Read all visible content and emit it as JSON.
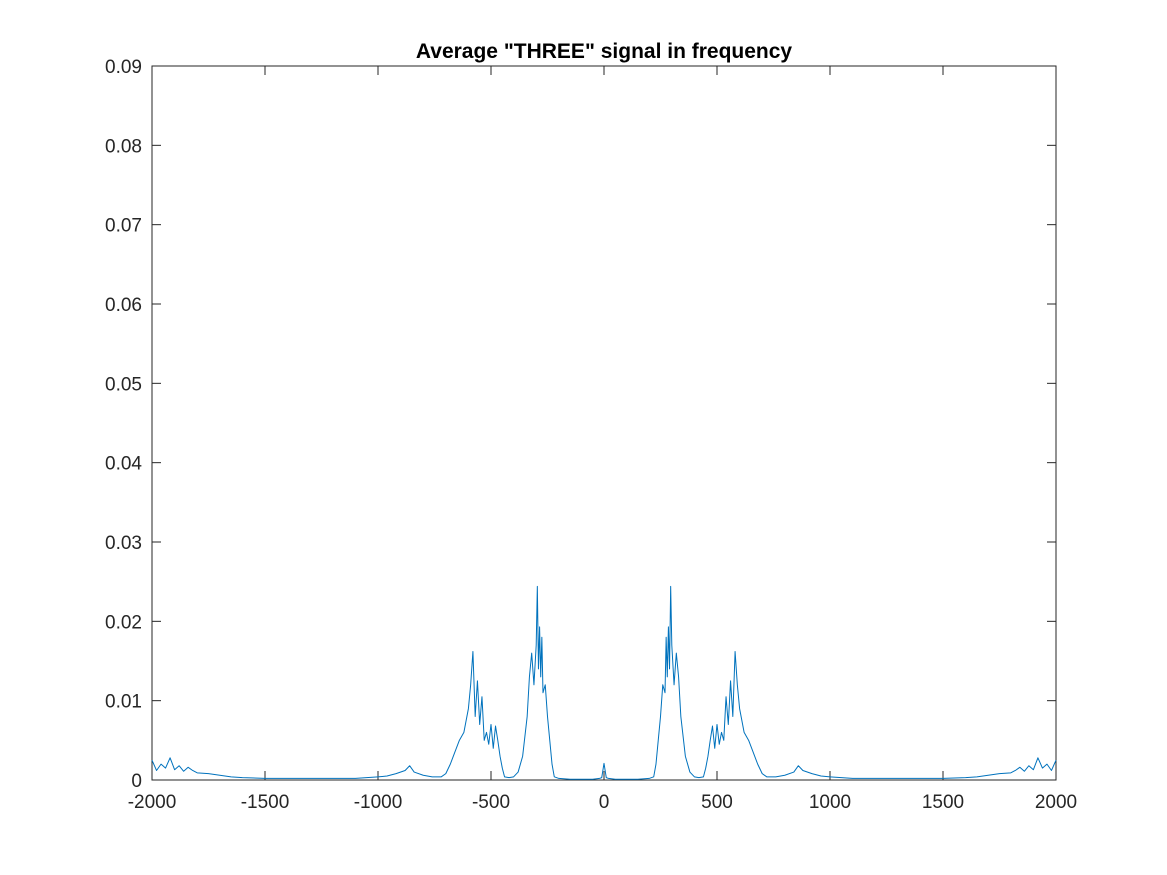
{
  "chart_data": {
    "type": "line",
    "title": "Average \"THREE\" signal in frequency",
    "xlabel": "",
    "ylabel": "",
    "xlim": [
      -2000,
      2000
    ],
    "ylim": [
      0,
      0.09
    ],
    "xticks": [
      -2000,
      -1500,
      -1000,
      -500,
      0,
      500,
      1000,
      1500,
      2000
    ],
    "xtick_labels": [
      "-2000",
      "-1500",
      "-1000",
      "-500",
      "0",
      "500",
      "1000",
      "1500",
      "2000"
    ],
    "yticks": [
      0,
      0.01,
      0.02,
      0.03,
      0.04,
      0.05,
      0.06,
      0.07,
      0.08,
      0.09
    ],
    "ytick_labels": [
      "0",
      "0.01",
      "0.02",
      "0.03",
      "0.04",
      "0.05",
      "0.06",
      "0.07",
      "0.08",
      "0.09"
    ],
    "grid": false,
    "line_color": "#0072BD",
    "series": [
      {
        "x": [
          -2000,
          -1980,
          -1960,
          -1940,
          -1920,
          -1900,
          -1880,
          -1860,
          -1840,
          -1820,
          -1800,
          -1750,
          -1700,
          -1650,
          -1600,
          -1500,
          -1400,
          -1300,
          -1200,
          -1100,
          -1000,
          -960,
          -920,
          -880,
          -860,
          -840,
          -800,
          -760,
          -720,
          -700,
          -680,
          -660,
          -640,
          -620,
          -600,
          -590,
          -580,
          -570,
          -560,
          -550,
          -540,
          -530,
          -520,
          -510,
          -500,
          -490,
          -480,
          -470,
          -460,
          -450,
          -440,
          -420,
          -400,
          -380,
          -360,
          -340,
          -330,
          -320,
          -310,
          -300,
          -295,
          -290,
          -285,
          -280,
          -275,
          -270,
          -260,
          -250,
          -240,
          -230,
          -220,
          -200,
          -150,
          -100,
          -50,
          -20,
          -10,
          0,
          10,
          20,
          50,
          100,
          150,
          200,
          220,
          230,
          240,
          250,
          260,
          270,
          275,
          280,
          285,
          290,
          295,
          300,
          310,
          320,
          330,
          340,
          360,
          380,
          400,
          420,
          440,
          450,
          460,
          470,
          480,
          490,
          500,
          510,
          520,
          530,
          540,
          550,
          560,
          570,
          580,
          590,
          600,
          620,
          640,
          660,
          680,
          700,
          720,
          760,
          800,
          840,
          860,
          880,
          920,
          960,
          1000,
          1100,
          1200,
          1300,
          1400,
          1500,
          1600,
          1650,
          1700,
          1750,
          1800,
          1820,
          1840,
          1860,
          1880,
          1900,
          1920,
          1940,
          1960,
          1980,
          2000
        ],
        "y": [
          0.0025,
          0.0012,
          0.002,
          0.0015,
          0.0028,
          0.0013,
          0.0018,
          0.0011,
          0.0016,
          0.0012,
          0.0009,
          0.0008,
          0.0006,
          0.0004,
          0.0003,
          0.0002,
          0.0002,
          0.0002,
          0.0002,
          0.0002,
          0.0004,
          0.0005,
          0.0008,
          0.0012,
          0.0018,
          0.001,
          0.0006,
          0.0004,
          0.0004,
          0.0008,
          0.002,
          0.0035,
          0.005,
          0.006,
          0.009,
          0.012,
          0.0162,
          0.008,
          0.0125,
          0.007,
          0.0105,
          0.005,
          0.006,
          0.0045,
          0.007,
          0.004,
          0.0068,
          0.005,
          0.003,
          0.0015,
          0.0004,
          0.0003,
          0.0004,
          0.001,
          0.003,
          0.008,
          0.013,
          0.016,
          0.012,
          0.017,
          0.0244,
          0.014,
          0.0193,
          0.013,
          0.018,
          0.011,
          0.012,
          0.008,
          0.005,
          0.002,
          0.0004,
          0.0002,
          0.0001,
          0.0001,
          0.0001,
          0.0002,
          0.0003,
          0.0021,
          0.0003,
          0.0002,
          0.0001,
          0.0001,
          0.0001,
          0.0002,
          0.0004,
          0.002,
          0.005,
          0.008,
          0.012,
          0.011,
          0.018,
          0.013,
          0.0193,
          0.014,
          0.0244,
          0.017,
          0.012,
          0.016,
          0.013,
          0.008,
          0.003,
          0.001,
          0.0004,
          0.0003,
          0.0004,
          0.0015,
          0.003,
          0.005,
          0.0068,
          0.004,
          0.007,
          0.0045,
          0.006,
          0.005,
          0.0105,
          0.007,
          0.0125,
          0.008,
          0.0162,
          0.012,
          0.009,
          0.006,
          0.005,
          0.0035,
          0.002,
          0.0008,
          0.0004,
          0.0004,
          0.0006,
          0.001,
          0.0018,
          0.0012,
          0.0008,
          0.0005,
          0.0004,
          0.0002,
          0.0002,
          0.0002,
          0.0002,
          0.0002,
          0.0003,
          0.0004,
          0.0006,
          0.0008,
          0.0009,
          0.0012,
          0.0016,
          0.0011,
          0.0018,
          0.0013,
          0.0028,
          0.0015,
          0.002,
          0.0012,
          0.0025
        ]
      }
    ]
  }
}
